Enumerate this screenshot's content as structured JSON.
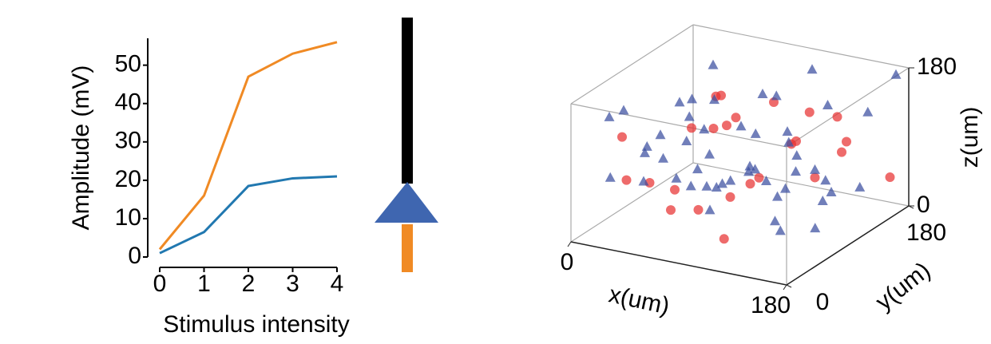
{
  "chart_data": [
    {
      "type": "line",
      "xlabel": "Stimulus intensity",
      "ylabel": "Amplitude (mV)",
      "x": [
        0,
        1,
        2,
        3,
        4
      ],
      "series": [
        {
          "color": "#f08a24",
          "values": [
            2,
            16,
            47,
            53,
            56
          ]
        },
        {
          "color": "#2178b0",
          "values": [
            1,
            6.5,
            18.5,
            20.5,
            21
          ]
        }
      ],
      "xlim": [
        0,
        4
      ],
      "xticks": [
        0,
        1,
        2,
        3,
        4
      ],
      "ylim": [
        0,
        57
      ],
      "yticks": [
        0,
        10,
        20,
        30,
        40,
        50
      ]
    },
    {
      "type": "scatter3d",
      "xlabel": "x(um)",
      "ylabel": "y(um)",
      "zlabel": "z(um)",
      "xlim": [
        0,
        180
      ],
      "ylim": [
        0,
        180
      ],
      "zlim": [
        0,
        180
      ],
      "xticks": [
        0,
        180
      ],
      "yticks": [
        0,
        180
      ],
      "zticks": [
        0,
        180
      ],
      "series": [
        {
          "color": "#e83232",
          "marker": "circle",
          "x": [
            20,
            45,
            70,
            95,
            120,
            150,
            170,
            30,
            60,
            90,
            110,
            140,
            160,
            10,
            55,
            80,
            130,
            100,
            65,
            175,
            35,
            125,
            85,
            145,
            115
          ],
          "y": [
            40,
            150,
            90,
            20,
            120,
            60,
            170,
            100,
            10,
            140,
            70,
            30,
            110,
            160,
            50,
            80,
            130,
            175,
            120,
            90,
            20,
            5,
            60,
            150,
            40
          ],
          "z": [
            120,
            80,
            160,
            60,
            100,
            140,
            40,
            20,
            90,
            130,
            70,
            110,
            150,
            60,
            30,
            170,
            50,
            100,
            10,
            120,
            80,
            40,
            140,
            90,
            175
          ]
        },
        {
          "color": "#3a4ea0",
          "marker": "triangle",
          "x": [
            5,
            15,
            25,
            35,
            45,
            55,
            65,
            75,
            85,
            95,
            105,
            115,
            125,
            135,
            145,
            155,
            165,
            175,
            10,
            20,
            30,
            40,
            50,
            60,
            70,
            80,
            90,
            100,
            110,
            120,
            130,
            140,
            150,
            160,
            170,
            12,
            38,
            62,
            88,
            112,
            138,
            162,
            28,
            52,
            78,
            102,
            128,
            152,
            176,
            68
          ],
          "y": [
            100,
            30,
            160,
            70,
            130,
            10,
            90,
            150,
            50,
            120,
            170,
            20,
            80,
            140,
            60,
            110,
            40,
            170,
            60,
            120,
            5,
            180,
            90,
            30,
            140,
            70,
            160,
            10,
            110,
            50,
            130,
            25,
            95,
            155,
            75,
            175,
            45,
            105,
            15,
            135,
            65,
            35,
            125,
            85,
            165,
            55,
            145,
            3,
            115,
            40
          ],
          "z": [
            60,
            150,
            30,
            110,
            170,
            90,
            10,
            130,
            70,
            40,
            160,
            100,
            20,
            140,
            80,
            50,
            120,
            175,
            140,
            20,
            90,
            60,
            150,
            110,
            40,
            170,
            80,
            120,
            30,
            100,
            60,
            170,
            10,
            130,
            90,
            50,
            110,
            30,
            150,
            70,
            20,
            160,
            100,
            40,
            120,
            80,
            10,
            140,
            60,
            180
          ]
        }
      ]
    }
  ]
}
